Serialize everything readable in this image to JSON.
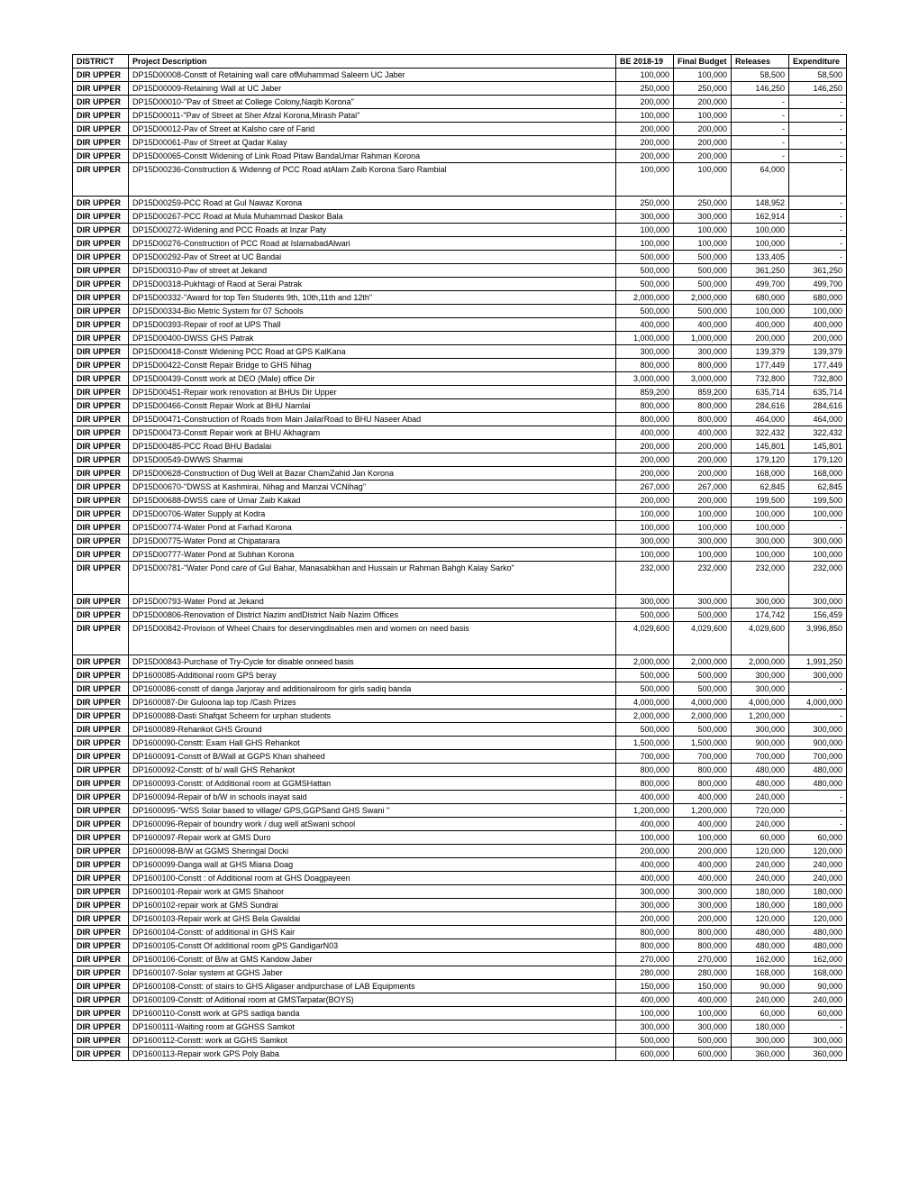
{
  "table": {
    "columns": [
      "DISTRICT",
      "Project Description",
      "BE 2018-19",
      "Final Budget",
      "Releases",
      "Expenditure"
    ],
    "district": "DIR UPPER",
    "rows": [
      {
        "desc": "DP15D00008-Constt  of Retaining wall care ofMuhammad Saleem UC Jaber",
        "be": "100,000",
        "fb": "100,000",
        "rel": "58,500",
        "exp": "58,500"
      },
      {
        "desc": "DP15D00009-Retaining Wall at UC Jaber",
        "be": "250,000",
        "fb": "250,000",
        "rel": "146,250",
        "exp": "146,250"
      },
      {
        "desc": "DP15D00010-\"Pav   of Street at College Colony,Naqib Korona\"",
        "be": "200,000",
        "fb": "200,000",
        "rel": "-",
        "exp": "-"
      },
      {
        "desc": "DP15D00011-\"Pav   of Street at Sher Afzal Korona,Mirash Patai\"",
        "be": "100,000",
        "fb": "100,000",
        "rel": "-",
        "exp": "-"
      },
      {
        "desc": "DP15D00012-Pav   of Street at Kalsho care of  Farid",
        "be": "200,000",
        "fb": "200,000",
        "rel": "-",
        "exp": "-"
      },
      {
        "desc": "DP15D00061-Pav   of Street at Qadar Kalay",
        "be": "200,000",
        "fb": "200,000",
        "rel": "-",
        "exp": "-"
      },
      {
        "desc": "DP15D00065-Constt Widening of Link Road Pitaw BandaUmar Rahman Korona",
        "be": "200,000",
        "fb": "200,000",
        "rel": "-",
        "exp": "-"
      },
      {
        "desc": "DP15D00236-Construction & Widenng of PCC Road atAlam Zaib Korona Saro Rambial",
        "be": "100,000",
        "fb": "100,000",
        "rel": "64,000",
        "exp": "-",
        "tall": true
      },
      {
        "desc": "DP15D00259-PCC Road at Gul Nawaz Korona",
        "be": "250,000",
        "fb": "250,000",
        "rel": "148,952",
        "exp": "-"
      },
      {
        "desc": "DP15D00267-PCC Road at Mula Muhammad Daskor Bala",
        "be": "300,000",
        "fb": "300,000",
        "rel": "162,914",
        "exp": "-"
      },
      {
        "desc": "DP15D00272-Widening and PCC Roads at Inzar Paty",
        "be": "100,000",
        "fb": "100,000",
        "rel": "100,000",
        "exp": "-"
      },
      {
        "desc": "DP15D00276-Construction of PCC Road at IslamabadAlwari",
        "be": "100,000",
        "fb": "100,000",
        "rel": "100,000",
        "exp": "-"
      },
      {
        "desc": "DP15D00292-Pav   of Street at UC Bandai",
        "be": "500,000",
        "fb": "500,000",
        "rel": "133,405",
        "exp": "-"
      },
      {
        "desc": "DP15D00310-Pav   of street at Jekand",
        "be": "500,000",
        "fb": "500,000",
        "rel": "361,250",
        "exp": "361,250"
      },
      {
        "desc": "DP15D00318-Pukhtagi of Raod at Serai Patrak",
        "be": "500,000",
        "fb": "500,000",
        "rel": "499,700",
        "exp": "499,700"
      },
      {
        "desc": "DP15D00332-\"Award for top Ten Students 9th, 10th,11th and 12th\"",
        "be": "2,000,000",
        "fb": "2,000,000",
        "rel": "680,000",
        "exp": "680,000"
      },
      {
        "desc": "DP15D00334-Bio Metric System for 07 Schools",
        "be": "500,000",
        "fb": "500,000",
        "rel": "100,000",
        "exp": "100,000"
      },
      {
        "desc": "DP15D00393-Repair of roof at UPS Thall",
        "be": "400,000",
        "fb": "400,000",
        "rel": "400,000",
        "exp": "400,000"
      },
      {
        "desc": "DP15D00400-DWSS GHS Patrak",
        "be": "1,000,000",
        "fb": "1,000,000",
        "rel": "200,000",
        "exp": "200,000"
      },
      {
        "desc": "DP15D00418-Constt Widening PCC Road at GPS KalKana",
        "be": "300,000",
        "fb": "300,000",
        "rel": "139,379",
        "exp": "139,379"
      },
      {
        "desc": "DP15D00422-Constt  Repair Bridge to GHS Nihag",
        "be": "800,000",
        "fb": "800,000",
        "rel": "177,449",
        "exp": "177,449"
      },
      {
        "desc": "DP15D00439-Constt   work at DEO (Male) office  Dir",
        "be": "3,000,000",
        "fb": "3,000,000",
        "rel": "732,800",
        "exp": "732,800"
      },
      {
        "desc": "DP15D00451-Repair work renovation at BHUs Dir Upper",
        "be": "859,200",
        "fb": "859,200",
        "rel": "635,714",
        "exp": "635,714"
      },
      {
        "desc": "DP15D00466-Constt Repair Work at BHU Namlai",
        "be": "800,000",
        "fb": "800,000",
        "rel": "284,616",
        "exp": "284,616"
      },
      {
        "desc": "DP15D00471-Construction of Roads from Main JailarRoad to BHU Naseer Abad",
        "be": "800,000",
        "fb": "800,000",
        "rel": "464,000",
        "exp": "464,000"
      },
      {
        "desc": "DP15D00473-Constt   Repair work at BHU Akhagram",
        "be": "400,000",
        "fb": "400,000",
        "rel": "322,432",
        "exp": "322,432"
      },
      {
        "desc": "DP15D00485-PCC Road BHU Badalai",
        "be": "200,000",
        "fb": "200,000",
        "rel": "145,801",
        "exp": "145,801"
      },
      {
        "desc": "DP15D00549-DWWS Sharmai",
        "be": "200,000",
        "fb": "200,000",
        "rel": "179,120",
        "exp": "179,120"
      },
      {
        "desc": "DP15D00628-Construction of Dug Well at Bazar ChamZahid Jan Korona",
        "be": "200,000",
        "fb": "200,000",
        "rel": "168,000",
        "exp": "168,000"
      },
      {
        "desc": "DP15D00670-\"DWSS at Kashmirai, Nihag and Manzai VCNihag\"",
        "be": "267,000",
        "fb": "267,000",
        "rel": "62,845",
        "exp": "62,845"
      },
      {
        "desc": "DP15D00688-DWSS care of  Umar Zaib Kakad",
        "be": "200,000",
        "fb": "200,000",
        "rel": "199,500",
        "exp": "199,500"
      },
      {
        "desc": "DP15D00706-Water Supply at Kodra",
        "be": "100,000",
        "fb": "100,000",
        "rel": "100,000",
        "exp": "100,000"
      },
      {
        "desc": "DP15D00774-Water Pond at Farhad Korona",
        "be": "100,000",
        "fb": "100,000",
        "rel": "100,000",
        "exp": "-"
      },
      {
        "desc": "DP15D00775-Water Pond at Chipatarara",
        "be": "300,000",
        "fb": "300,000",
        "rel": "300,000",
        "exp": "300,000"
      },
      {
        "desc": "DP15D00777-Water Pond at Subhan Korona",
        "be": "100,000",
        "fb": "100,000",
        "rel": "100,000",
        "exp": "100,000"
      },
      {
        "desc": "DP15D00781-\"Water Pond care of  Gul Bahar, Manasabkhan and Hussain ur Rahman Bahgh Kalay Sarko\"",
        "be": "232,000",
        "fb": "232,000",
        "rel": "232,000",
        "exp": "232,000",
        "tall": true
      },
      {
        "desc": "DP15D00793-Water Pond at Jekand",
        "be": "300,000",
        "fb": "300,000",
        "rel": "300,000",
        "exp": "300,000"
      },
      {
        "desc": "DP15D00806-Renovation of District Nazim  andDistrict Naib Nazim Offices",
        "be": "500,000",
        "fb": "500,000",
        "rel": "174,742",
        "exp": "156,459"
      },
      {
        "desc": "DP15D00842-Provison of Wheel Chairs for deservingdisables men and women on need basis",
        "be": "4,029,600",
        "fb": "4,029,600",
        "rel": "4,029,600",
        "exp": "3,996,850",
        "tall": true
      },
      {
        "desc": "DP15D00843-Purchase of Try-Cycle for disable onneed basis",
        "be": "2,000,000",
        "fb": "2,000,000",
        "rel": "2,000,000",
        "exp": "1,991,250"
      },
      {
        "desc": "DP1600085-Additional room GPS beray",
        "be": "500,000",
        "fb": "500,000",
        "rel": "300,000",
        "exp": "300,000"
      },
      {
        "desc": "DP1600086-constt of danga Jarjoray and additionalroom for girls sadiq banda",
        "be": "500,000",
        "fb": "500,000",
        "rel": "300,000",
        "exp": "-"
      },
      {
        "desc": "DP1600087-Dir Guloona lap top /Cash Prizes",
        "be": "4,000,000",
        "fb": "4,000,000",
        "rel": "4,000,000",
        "exp": "4,000,000"
      },
      {
        "desc": "DP1600088-Dasti Shafqat Scheem for urphan students",
        "be": "2,000,000",
        "fb": "2,000,000",
        "rel": "1,200,000",
        "exp": "-"
      },
      {
        "desc": "DP1600089-Rehankot GHS Ground",
        "be": "500,000",
        "fb": "500,000",
        "rel": "300,000",
        "exp": "300,000"
      },
      {
        "desc": "DP1600090-Constt: Exam Hall GHS Rehankot",
        "be": "1,500,000",
        "fb": "1,500,000",
        "rel": "900,000",
        "exp": "900,000"
      },
      {
        "desc": "DP1600091-Constt of B/Wall at GGPS Khan shaheed",
        "be": "700,000",
        "fb": "700,000",
        "rel": "700,000",
        "exp": "700,000"
      },
      {
        "desc": "DP1600092-Constt: of b/ wall GHS Rehankot",
        "be": "800,000",
        "fb": "800,000",
        "rel": "480,000",
        "exp": "480,000"
      },
      {
        "desc": "DP1600093-Constt: of Additional room at GGMSHattan",
        "be": "800,000",
        "fb": "800,000",
        "rel": "480,000",
        "exp": "480,000"
      },
      {
        "desc": "DP1600094-Repair of b/W in schools inayat said",
        "be": "400,000",
        "fb": "400,000",
        "rel": "240,000",
        "exp": "-"
      },
      {
        "desc": "DP1600095-\"WSS  Solar based to village/ GPS,GGPSand GHS Swani \"",
        "be": "1,200,000",
        "fb": "1,200,000",
        "rel": "720,000",
        "exp": "-"
      },
      {
        "desc": "DP1600096-Repair of boundry work / dug well atSwani school",
        "be": "400,000",
        "fb": "400,000",
        "rel": "240,000",
        "exp": "-"
      },
      {
        "desc": "DP1600097-Repair work at GMS Duro",
        "be": "100,000",
        "fb": "100,000",
        "rel": "60,000",
        "exp": "60,000"
      },
      {
        "desc": "DP1600098-B/W at GGMS Sheringal Docki",
        "be": "200,000",
        "fb": "200,000",
        "rel": "120,000",
        "exp": "120,000"
      },
      {
        "desc": "DP1600099-Danga wall at GHS Miana Doag",
        "be": "400,000",
        "fb": "400,000",
        "rel": "240,000",
        "exp": "240,000"
      },
      {
        "desc": "DP1600100-Constt : of Additional room at GHS Doagpayeen",
        "be": "400,000",
        "fb": "400,000",
        "rel": "240,000",
        "exp": "240,000"
      },
      {
        "desc": "DP1600101-Repair work at GMS Shahoor",
        "be": "300,000",
        "fb": "300,000",
        "rel": "180,000",
        "exp": "180,000"
      },
      {
        "desc": "DP1600102-repair work at GMS Sundrai",
        "be": "300,000",
        "fb": "300,000",
        "rel": "180,000",
        "exp": "180,000"
      },
      {
        "desc": "DP1600103-Repair work at GHS Bela Gwaldai",
        "be": "200,000",
        "fb": "200,000",
        "rel": "120,000",
        "exp": "120,000"
      },
      {
        "desc": "DP1600104-Constt: of additional in GHS Kair",
        "be": "800,000",
        "fb": "800,000",
        "rel": "480,000",
        "exp": "480,000"
      },
      {
        "desc": "DP1600105-Constt Of additional room gPS GandigarN03",
        "be": "800,000",
        "fb": "800,000",
        "rel": "480,000",
        "exp": "480,000"
      },
      {
        "desc": "DP1600106-Constt: of B/w at GMS Kandow Jaber",
        "be": "270,000",
        "fb": "270,000",
        "rel": "162,000",
        "exp": "162,000"
      },
      {
        "desc": "DP1600107-Solar system at GGHS Jaber",
        "be": "280,000",
        "fb": "280,000",
        "rel": "168,000",
        "exp": "168,000"
      },
      {
        "desc": "DP1600108-Constt: of stairs to GHS Aligaser andpurchase of LAB Equipments",
        "be": "150,000",
        "fb": "150,000",
        "rel": "90,000",
        "exp": "90,000"
      },
      {
        "desc": "DP1600109-Constt: of Aditional room at GMSTarpatar(BOYS)",
        "be": "400,000",
        "fb": "400,000",
        "rel": "240,000",
        "exp": "240,000"
      },
      {
        "desc": "DP1600110-Constt work at GPS sadiqa banda",
        "be": "100,000",
        "fb": "100,000",
        "rel": "60,000",
        "exp": "60,000"
      },
      {
        "desc": "DP1600111-Waiting room at GGHSS Samkot",
        "be": "300,000",
        "fb": "300,000",
        "rel": "180,000",
        "exp": "-"
      },
      {
        "desc": "DP1600112-Constt: work at GGHS  Samkot",
        "be": "500,000",
        "fb": "500,000",
        "rel": "300,000",
        "exp": "300,000"
      },
      {
        "desc": "DP1600113-Repair work GPS Poly Baba",
        "be": "600,000",
        "fb": "600,000",
        "rel": "360,000",
        "exp": "360,000"
      }
    ]
  }
}
